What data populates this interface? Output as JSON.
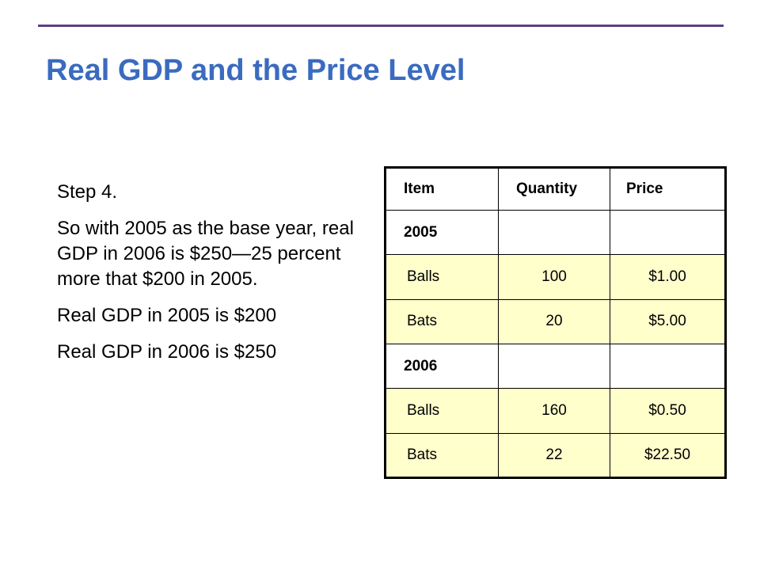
{
  "slide": {
    "title": "Real GDP and the Price Level",
    "paragraphs": [
      "Step 4.",
      "So with 2005 as the base year, real GDP in 2006 is $250—25 percent more that $200 in 2005.",
      "Real GDP in 2005 is $200",
      "Real GDP in 2006 is $250"
    ]
  },
  "table": {
    "headers": [
      "Item",
      "Quantity",
      "Price"
    ],
    "years": [
      {
        "year": "2005",
        "rows": [
          {
            "item": "Balls",
            "quantity": "100",
            "price": "$1.00"
          },
          {
            "item": "Bats",
            "quantity": "20",
            "price": "$5.00"
          }
        ]
      },
      {
        "year": "2006",
        "rows": [
          {
            "item": "Balls",
            "quantity": "160",
            "price": "$0.50"
          },
          {
            "item": "Bats",
            "quantity": "22",
            "price": "$22.50"
          }
        ]
      }
    ]
  },
  "colors": {
    "title": "#3a6bbf",
    "rule": "#5b3f86",
    "row_highlight": "#ffffcc"
  }
}
